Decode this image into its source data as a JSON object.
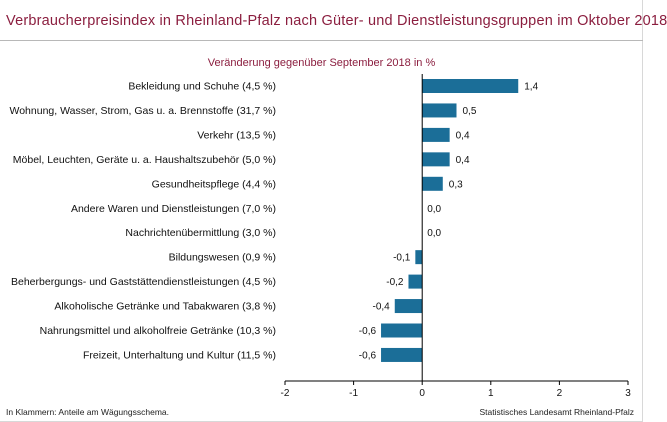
{
  "title": "Verbraucherpreisindex in Rheinland-Pfalz nach Güter- und Dienstleistungsgruppen im Oktober 2018",
  "subtitle": "Veränderung gegenüber September 2018 in %",
  "footnote_left": "In Klammern: Anteile am Wägungsschema.",
  "footnote_right": "Statistisches Landesamt Rheinland-Pfalz",
  "colors": {
    "bar": "#1b6e98",
    "title": "#8b1e3f",
    "axis": "#000000"
  },
  "chart_data": {
    "type": "bar",
    "orientation": "horizontal",
    "title": "Verbraucherpreisindex in Rheinland-Pfalz nach Güter- und Dienstleistungsgruppen im Oktober 2018",
    "subtitle": "Veränderung gegenüber September 2018 in %",
    "categories": [
      "Bekleidung und Schuhe (4,5 %)",
      "Wohnung, Wasser, Strom, Gas u. a. Brennstoffe (31,7 %)",
      "Verkehr (13,5 %)",
      "Möbel, Leuchten, Geräte u. a. Haushaltszubehör (5,0 %)",
      "Gesundheitspflege (4,4 %)",
      "Andere Waren und Dienstleistungen (7,0 %)",
      "Nachrichtenübermittlung (3,0 %)",
      "Bildungswesen (0,9 %)",
      "Beherbergungs- und Gaststättendienstleistungen (4,5 %)",
      "Alkoholische Getränke und Tabakwaren (3,8 %)",
      "Nahrungsmittel und alkoholfreie Getränke (10,3 %)",
      "Freizeit, Unterhaltung und Kultur (11,5 %)"
    ],
    "values": [
      1.4,
      0.5,
      0.4,
      0.4,
      0.3,
      0.0,
      0.0,
      -0.1,
      -0.2,
      -0.4,
      -0.6,
      -0.6
    ],
    "value_labels": [
      "1,4",
      "0,5",
      "0,4",
      "0,4",
      "0,3",
      "0,0",
      "0,0",
      "-0,1",
      "-0,2",
      "-0,4",
      "-0,6",
      "-0,6"
    ],
    "xlim": [
      -2,
      3
    ],
    "xticks": [
      -2,
      -1,
      0,
      1,
      2,
      3
    ],
    "xtick_labels": [
      "-2",
      "-1",
      "0",
      "1",
      "2",
      "3"
    ],
    "grid": false,
    "legend": "none"
  }
}
